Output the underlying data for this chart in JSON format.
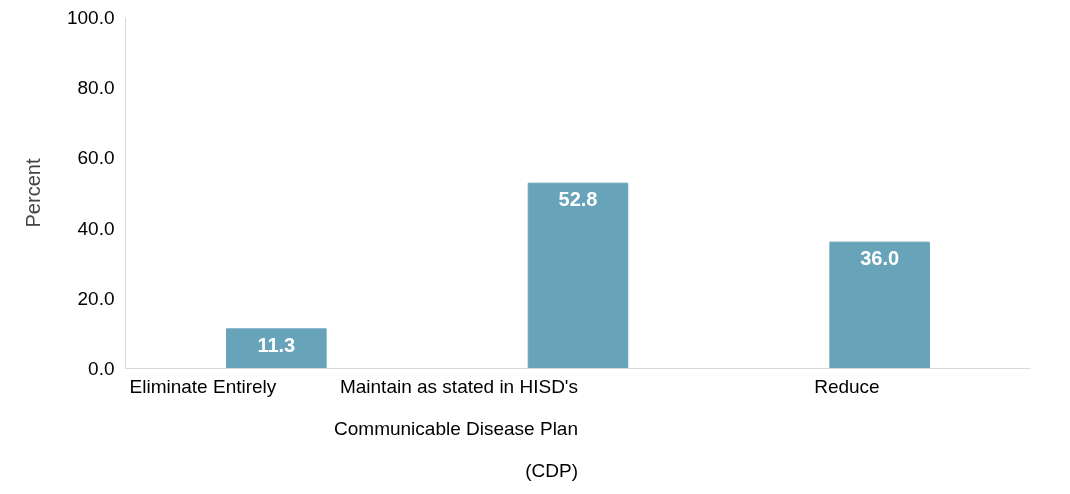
{
  "chart_data": {
    "type": "bar",
    "ylabel": "Percent",
    "categories": [
      "Eliminate Entirely",
      "Maintain as stated in HISD's Communicable Disease Plan (CDP)",
      "Reduce"
    ],
    "values": [
      11.3,
      52.8,
      36.0
    ],
    "value_labels": [
      "11.3",
      "52.8",
      "36.0"
    ],
    "color": "#67a3b9",
    "ylim": [
      0,
      100
    ],
    "yticks": [
      {
        "value": 0,
        "label": "0.0"
      },
      {
        "value": 20,
        "label": "20.0"
      },
      {
        "value": 40,
        "label": "40.0"
      },
      {
        "value": 60,
        "label": "60.0"
      },
      {
        "value": 80,
        "label": "80.0"
      },
      {
        "value": 100,
        "label": "100.0"
      }
    ],
    "grid": false
  }
}
